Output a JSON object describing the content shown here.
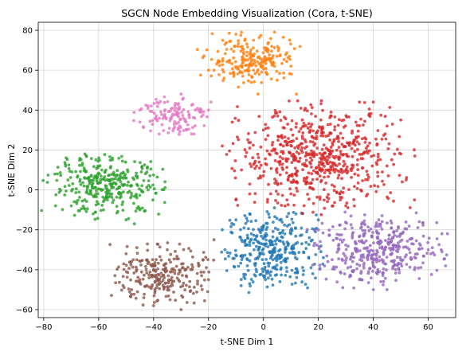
{
  "chart_data": {
    "type": "scatter",
    "title": "SGCN Node Embedding Visualization (Cora, t-SNE)",
    "xlabel": "t-SNE Dim 1",
    "ylabel": "t-SNE Dim 2",
    "xlim": [
      -82,
      70
    ],
    "ylim": [
      -64,
      84
    ],
    "xticks": [
      -80,
      -60,
      -40,
      -20,
      0,
      20,
      40,
      60
    ],
    "yticks": [
      -60,
      -40,
      -20,
      0,
      20,
      40,
      60,
      80
    ],
    "grid": true,
    "point_opacity": 0.8,
    "series": [
      {
        "color": "#1f77b4",
        "count": 330,
        "center": [
          3,
          -30
        ],
        "spread": [
          8,
          9
        ],
        "points": [
          [
            -15,
            -20
          ],
          [
            -10,
            -15
          ],
          [
            -5,
            -12
          ],
          [
            20,
            -15
          ],
          [
            -3,
            -38
          ],
          [
            -5,
            -47
          ],
          [
            6,
            -46
          ],
          [
            18,
            -42
          ],
          [
            10,
            -22
          ],
          [
            -8,
            -25
          ],
          [
            4,
            -9
          ],
          [
            14,
            -27
          ],
          [
            -14,
            -30
          ],
          [
            8,
            -35
          ],
          [
            0,
            -43
          ]
        ]
      },
      {
        "color": "#ff7f0e",
        "count": 210,
        "center": [
          -5,
          65
        ],
        "spread": [
          8,
          6
        ],
        "points": [
          [
            -20,
            60
          ],
          [
            -18,
            60
          ],
          [
            -8,
            79
          ],
          [
            -10,
            78
          ],
          [
            3,
            72
          ],
          [
            5,
            55
          ],
          [
            -2,
            48
          ],
          [
            10,
            62
          ],
          [
            -14,
            73
          ],
          [
            12,
            48
          ],
          [
            -5,
            68
          ],
          [
            0,
            64
          ]
        ]
      },
      {
        "color": "#2ca02c",
        "count": 330,
        "center": [
          -57,
          2
        ],
        "spread": [
          10,
          7
        ],
        "points": [
          [
            -75,
            8
          ],
          [
            -70,
            -8
          ],
          [
            -65,
            18
          ],
          [
            -50,
            -15
          ],
          [
            -45,
            -10
          ],
          [
            -42,
            0
          ],
          [
            -55,
            16
          ],
          [
            -62,
            -12
          ],
          [
            -53,
            5
          ],
          [
            -48,
            -3
          ],
          [
            -47,
            -17
          ]
        ]
      },
      {
        "color": "#d62728",
        "count": 620,
        "center": [
          20,
          16
        ],
        "spread": [
          14,
          12
        ],
        "points": [
          [
            -15,
            22
          ],
          [
            -5,
            -2
          ],
          [
            35,
            44
          ],
          [
            40,
            44
          ],
          [
            45,
            32
          ],
          [
            50,
            35
          ],
          [
            45,
            12
          ],
          [
            50,
            18
          ],
          [
            30,
            -8
          ],
          [
            55,
            -5
          ],
          [
            24,
            18
          ],
          [
            0,
            30
          ],
          [
            -8,
            10
          ],
          [
            15,
            40
          ],
          [
            38,
            22
          ],
          [
            52,
            5
          ],
          [
            28,
            -5
          ],
          [
            -10,
            -5
          ],
          [
            10,
            -2
          ]
        ]
      },
      {
        "color": "#9467bd",
        "count": 380,
        "center": [
          42,
          -30
        ],
        "spread": [
          11,
          8
        ],
        "points": [
          [
            20,
            -20
          ],
          [
            25,
            -35
          ],
          [
            28,
            -25
          ],
          [
            35,
            -45
          ],
          [
            40,
            -50
          ],
          [
            45,
            -50
          ],
          [
            55,
            -40
          ],
          [
            60,
            -30
          ],
          [
            65,
            -22
          ],
          [
            67,
            -22
          ],
          [
            42,
            -15
          ],
          [
            50,
            -22
          ],
          [
            38,
            -35
          ]
        ]
      },
      {
        "color": "#e377c2",
        "count": 120,
        "center": [
          -33,
          38
        ],
        "spread": [
          6,
          5
        ],
        "points": [
          [
            -45,
            40
          ],
          [
            -45,
            34
          ],
          [
            -20,
            40
          ],
          [
            -38,
            28
          ],
          [
            -30,
            48
          ],
          [
            -28,
            30
          ],
          [
            -42,
            42
          ],
          [
            -25,
            36
          ],
          [
            -33,
            38
          ]
        ]
      },
      {
        "color": "#8c564b",
        "count": 250,
        "center": [
          -37,
          -43
        ],
        "spread": [
          8,
          7
        ],
        "points": [
          [
            -50,
            -32
          ],
          [
            -48,
            -36
          ],
          [
            -48,
            -50
          ],
          [
            -40,
            -58
          ],
          [
            -30,
            -60
          ],
          [
            -20,
            -45
          ],
          [
            -22,
            -35
          ],
          [
            -18,
            -25
          ],
          [
            -45,
            -45
          ],
          [
            -35,
            -30
          ],
          [
            -40,
            -40
          ]
        ]
      }
    ]
  }
}
